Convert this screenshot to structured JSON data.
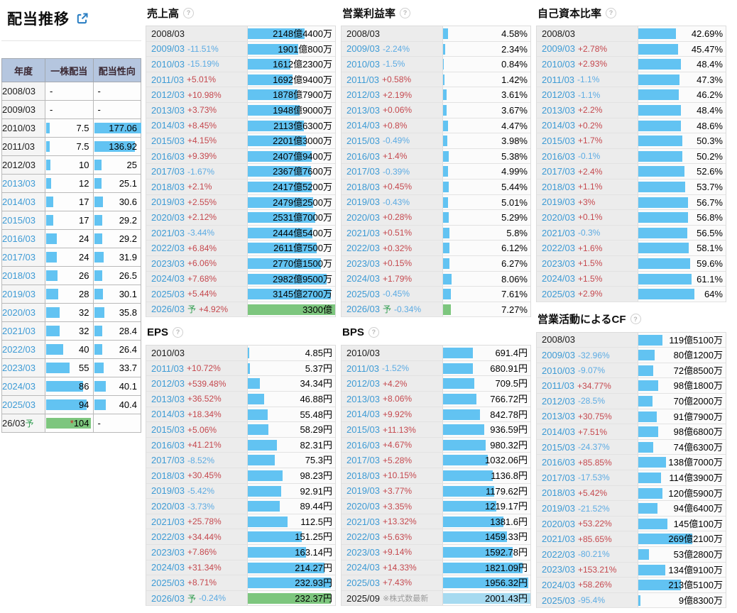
{
  "dividend_panel": {
    "title": "配当推移",
    "headers": [
      "年度",
      "一株配当",
      "配当性向"
    ],
    "rows": [
      {
        "year": "2008/03",
        "link": false,
        "dps": "-",
        "dps_bar": 0,
        "payout": "-",
        "payout_bar": 0
      },
      {
        "year": "2009/03",
        "link": false,
        "dps": "-",
        "dps_bar": 0,
        "payout": "-",
        "payout_bar": 0
      },
      {
        "year": "2010/03",
        "link": false,
        "dps": "7.5",
        "dps_bar": 7,
        "payout": "177.06",
        "payout_bar": 100
      },
      {
        "year": "2011/03",
        "link": false,
        "dps": "7.5",
        "dps_bar": 7,
        "payout": "136.92",
        "payout_bar": 86
      },
      {
        "year": "2012/03",
        "link": false,
        "dps": "10",
        "dps_bar": 9,
        "payout": "25",
        "payout_bar": 16
      },
      {
        "year": "2013/03",
        "link": true,
        "dps": "12",
        "dps_bar": 11,
        "payout": "25.1",
        "payout_bar": 16
      },
      {
        "year": "2014/03",
        "link": true,
        "dps": "17",
        "dps_bar": 15,
        "payout": "30.6",
        "payout_bar": 19
      },
      {
        "year": "2015/03",
        "link": true,
        "dps": "17",
        "dps_bar": 15,
        "payout": "29.2",
        "payout_bar": 18
      },
      {
        "year": "2016/03",
        "link": true,
        "dps": "24",
        "dps_bar": 22,
        "payout": "29.2",
        "payout_bar": 18
      },
      {
        "year": "2017/03",
        "link": true,
        "dps": "24",
        "dps_bar": 22,
        "payout": "31.9",
        "payout_bar": 20
      },
      {
        "year": "2018/03",
        "link": true,
        "dps": "26",
        "dps_bar": 24,
        "payout": "26.5",
        "payout_bar": 17
      },
      {
        "year": "2019/03",
        "link": true,
        "dps": "28",
        "dps_bar": 25,
        "payout": "30.1",
        "payout_bar": 19
      },
      {
        "year": "2020/03",
        "link": true,
        "dps": "32",
        "dps_bar": 29,
        "payout": "35.8",
        "payout_bar": 22
      },
      {
        "year": "2021/03",
        "link": true,
        "dps": "32",
        "dps_bar": 29,
        "payout": "28.4",
        "payout_bar": 18
      },
      {
        "year": "2022/03",
        "link": true,
        "dps": "40",
        "dps_bar": 36,
        "payout": "26.4",
        "payout_bar": 17
      },
      {
        "year": "2023/03",
        "link": true,
        "dps": "55",
        "dps_bar": 50,
        "payout": "33.7",
        "payout_bar": 21
      },
      {
        "year": "2024/03",
        "link": true,
        "dps": "86",
        "dps_bar": 78,
        "payout": "40.1",
        "payout_bar": 25
      },
      {
        "year": "2025/03",
        "link": true,
        "dps": "94",
        "dps_bar": 85,
        "payout": "40.4",
        "payout_bar": 25
      },
      {
        "year": "26/03",
        "suffix": "予",
        "link": false,
        "dps": "104",
        "star": "*",
        "dps_bar": 95,
        "dps_color": "green",
        "payout": "-",
        "payout_bar": 0
      }
    ]
  },
  "sections": [
    {
      "title": "売上高",
      "help": false,
      "rows": [
        {
          "year": "2008/03",
          "link": false,
          "change": "",
          "value": "2148億4400万",
          "bar": 65
        },
        {
          "year": "2009/03",
          "change": "-11.51%",
          "value": "1901億800万",
          "bar": 58
        },
        {
          "year": "2010/03",
          "change": "-15.19%",
          "value": "1612億2300万",
          "bar": 49
        },
        {
          "year": "2011/03",
          "change": "+5.01%",
          "value": "1692億9400万",
          "bar": 51
        },
        {
          "year": "2012/03",
          "change": "+10.98%",
          "value": "1878億7900万",
          "bar": 57
        },
        {
          "year": "2013/03",
          "change": "+3.73%",
          "value": "1948億9000万",
          "bar": 59
        },
        {
          "year": "2014/03",
          "change": "+8.45%",
          "value": "2113億6300万",
          "bar": 64
        },
        {
          "year": "2015/03",
          "change": "+4.15%",
          "value": "2201億3000万",
          "bar": 67
        },
        {
          "year": "2016/03",
          "change": "+9.39%",
          "value": "2407億9400万",
          "bar": 73
        },
        {
          "year": "2017/03",
          "change": "-1.67%",
          "value": "2367億7600万",
          "bar": 72
        },
        {
          "year": "2018/03",
          "change": "+2.1%",
          "value": "2417億5200万",
          "bar": 73
        },
        {
          "year": "2019/03",
          "change": "+2.55%",
          "value": "2479億2500万",
          "bar": 75
        },
        {
          "year": "2020/03",
          "change": "+2.12%",
          "value": "2531億7000万",
          "bar": 77
        },
        {
          "year": "2021/03",
          "change": "-3.44%",
          "value": "2444億5400万",
          "bar": 74
        },
        {
          "year": "2022/03",
          "change": "+6.84%",
          "value": "2611億7500万",
          "bar": 79
        },
        {
          "year": "2023/03",
          "change": "+6.06%",
          "value": "2770億1500万",
          "bar": 84
        },
        {
          "year": "2024/03",
          "change": "+7.68%",
          "value": "2982億9500万",
          "bar": 90
        },
        {
          "year": "2025/03",
          "change": "+5.44%",
          "value": "3145億2700万",
          "bar": 95
        },
        {
          "year": "2026/03",
          "suffix": "予",
          "change": "+4.92%",
          "value": "3300億",
          "bar": 100,
          "color": "green"
        }
      ]
    },
    {
      "title": "営業利益率",
      "help": false,
      "rows": [
        {
          "year": "2008/03",
          "link": false,
          "change": "",
          "value": "4.58%",
          "bar": 5.5
        },
        {
          "year": "2009/03",
          "change": "-2.24%",
          "value": "2.34%",
          "bar": 2.8
        },
        {
          "year": "2010/03",
          "change": "-1.5%",
          "value": "0.84%",
          "bar": 1.2
        },
        {
          "year": "2011/03",
          "change": "+0.58%",
          "value": "1.42%",
          "bar": 1.8
        },
        {
          "year": "2012/03",
          "change": "+2.19%",
          "value": "3.61%",
          "bar": 4.3
        },
        {
          "year": "2013/03",
          "change": "+0.06%",
          "value": "3.67%",
          "bar": 4.4
        },
        {
          "year": "2014/03",
          "change": "+0.8%",
          "value": "4.47%",
          "bar": 5.4
        },
        {
          "year": "2015/03",
          "change": "-0.49%",
          "value": "3.98%",
          "bar": 4.8
        },
        {
          "year": "2016/03",
          "change": "+1.4%",
          "value": "5.38%",
          "bar": 6.5
        },
        {
          "year": "2017/03",
          "change": "-0.39%",
          "value": "4.99%",
          "bar": 6
        },
        {
          "year": "2018/03",
          "change": "+0.45%",
          "value": "5.44%",
          "bar": 6.5
        },
        {
          "year": "2019/03",
          "change": "-0.43%",
          "value": "5.01%",
          "bar": 6
        },
        {
          "year": "2020/03",
          "change": "+0.28%",
          "value": "5.29%",
          "bar": 6.3
        },
        {
          "year": "2021/03",
          "change": "+0.51%",
          "value": "5.8%",
          "bar": 7
        },
        {
          "year": "2022/03",
          "change": "+0.32%",
          "value": "6.12%",
          "bar": 7.3
        },
        {
          "year": "2023/03",
          "change": "+0.15%",
          "value": "6.27%",
          "bar": 7.5
        },
        {
          "year": "2024/03",
          "change": "+1.79%",
          "value": "8.06%",
          "bar": 9.7
        },
        {
          "year": "2025/03",
          "change": "-0.45%",
          "value": "7.61%",
          "bar": 9.1
        },
        {
          "year": "2026/03",
          "suffix": "予",
          "change": "-0.34%",
          "value": "7.27%",
          "bar": 8.7,
          "color": "green"
        }
      ]
    },
    {
      "title": "自己資本比率",
      "help": true,
      "rows": [
        {
          "year": "2008/03",
          "link": false,
          "change": "",
          "value": "42.69%",
          "bar": 42.7
        },
        {
          "year": "2009/03",
          "change": "+2.78%",
          "value": "45.47%",
          "bar": 45.5
        },
        {
          "year": "2010/03",
          "change": "+2.93%",
          "value": "48.4%",
          "bar": 48.4
        },
        {
          "year": "2011/03",
          "change": "-1.1%",
          "value": "47.3%",
          "bar": 47.3
        },
        {
          "year": "2012/03",
          "change": "-1.1%",
          "value": "46.2%",
          "bar": 46.2
        },
        {
          "year": "2013/03",
          "change": "+2.2%",
          "value": "48.4%",
          "bar": 48.4
        },
        {
          "year": "2014/03",
          "change": "+0.2%",
          "value": "48.6%",
          "bar": 48.6
        },
        {
          "year": "2015/03",
          "change": "+1.7%",
          "value": "50.3%",
          "bar": 50.3
        },
        {
          "year": "2016/03",
          "change": "-0.1%",
          "value": "50.2%",
          "bar": 50.2
        },
        {
          "year": "2017/03",
          "change": "+2.4%",
          "value": "52.6%",
          "bar": 52.6
        },
        {
          "year": "2018/03",
          "change": "+1.1%",
          "value": "53.7%",
          "bar": 53.7
        },
        {
          "year": "2019/03",
          "change": "+3%",
          "value": "56.7%",
          "bar": 56.7
        },
        {
          "year": "2020/03",
          "change": "+0.1%",
          "value": "56.8%",
          "bar": 56.8
        },
        {
          "year": "2021/03",
          "change": "-0.3%",
          "value": "56.5%",
          "bar": 56.5
        },
        {
          "year": "2022/03",
          "change": "+1.6%",
          "value": "58.1%",
          "bar": 58.1
        },
        {
          "year": "2023/03",
          "change": "+1.5%",
          "value": "59.6%",
          "bar": 59.6
        },
        {
          "year": "2024/03",
          "change": "+1.5%",
          "value": "61.1%",
          "bar": 61.1
        },
        {
          "year": "2025/03",
          "change": "+2.9%",
          "value": "64%",
          "bar": 64
        }
      ]
    },
    {
      "title": "EPS",
      "help": true,
      "rows": [
        {
          "year": "2010/03",
          "link": false,
          "change": "",
          "value": "4.85円",
          "bar": 2
        },
        {
          "year": "2011/03",
          "change": "+10.72%",
          "value": "5.37円",
          "bar": 2.2
        },
        {
          "year": "2012/03",
          "change": "+539.48%",
          "value": "34.34円",
          "bar": 14
        },
        {
          "year": "2013/03",
          "change": "+36.52%",
          "value": "46.88円",
          "bar": 19.1
        },
        {
          "year": "2014/03",
          "change": "+18.34%",
          "value": "55.48円",
          "bar": 22.6
        },
        {
          "year": "2015/03",
          "change": "+5.06%",
          "value": "58.29円",
          "bar": 23.8
        },
        {
          "year": "2016/03",
          "change": "+41.21%",
          "value": "82.31円",
          "bar": 33.6
        },
        {
          "year": "2017/03",
          "change": "-8.52%",
          "value": "75.3円",
          "bar": 30.7
        },
        {
          "year": "2018/03",
          "change": "+30.45%",
          "value": "98.23円",
          "bar": 40.1
        },
        {
          "year": "2019/03",
          "change": "-5.42%",
          "value": "92.91円",
          "bar": 37.9
        },
        {
          "year": "2020/03",
          "change": "-3.73%",
          "value": "89.44円",
          "bar": 36.5
        },
        {
          "year": "2021/03",
          "change": "+25.78%",
          "value": "112.5円",
          "bar": 45.9
        },
        {
          "year": "2022/03",
          "change": "+34.44%",
          "value": "151.25円",
          "bar": 61.7
        },
        {
          "year": "2023/03",
          "change": "+7.86%",
          "value": "163.14円",
          "bar": 66.6
        },
        {
          "year": "2024/03",
          "change": "+31.34%",
          "value": "214.27円",
          "bar": 87.5
        },
        {
          "year": "2025/03",
          "change": "+8.71%",
          "value": "232.93円",
          "bar": 95.1
        },
        {
          "year": "2026/03",
          "suffix": "予",
          "change": "-0.24%",
          "value": "232.37円",
          "bar": 94.8,
          "color": "green"
        }
      ]
    },
    {
      "title": "BPS",
      "help": true,
      "rows": [
        {
          "year": "2010/03",
          "link": false,
          "change": "",
          "value": "691.4円",
          "bar": 34.5
        },
        {
          "year": "2011/03",
          "change": "-1.52%",
          "value": "680.91円",
          "bar": 34
        },
        {
          "year": "2012/03",
          "change": "+4.2%",
          "value": "709.5円",
          "bar": 35.4
        },
        {
          "year": "2013/03",
          "change": "+8.06%",
          "value": "766.72円",
          "bar": 38.3
        },
        {
          "year": "2014/03",
          "change": "+9.92%",
          "value": "842.78円",
          "bar": 42.1
        },
        {
          "year": "2015/03",
          "change": "+11.13%",
          "value": "936.59円",
          "bar": 46.8
        },
        {
          "year": "2016/03",
          "change": "+4.67%",
          "value": "980.32円",
          "bar": 49
        },
        {
          "year": "2017/03",
          "change": "+5.28%",
          "value": "1032.06円",
          "bar": 51.6
        },
        {
          "year": "2018/03",
          "change": "+10.15%",
          "value": "1136.8円",
          "bar": 56.8
        },
        {
          "year": "2019/03",
          "change": "+3.77%",
          "value": "1179.62円",
          "bar": 58.9
        },
        {
          "year": "2020/03",
          "change": "+3.35%",
          "value": "1219.17円",
          "bar": 60.9
        },
        {
          "year": "2021/03",
          "change": "+13.32%",
          "value": "1381.6円",
          "bar": 69
        },
        {
          "year": "2022/03",
          "change": "+5.63%",
          "value": "1459.33円",
          "bar": 72.9
        },
        {
          "year": "2023/03",
          "change": "+9.14%",
          "value": "1592.78円",
          "bar": 79.6
        },
        {
          "year": "2024/03",
          "change": "+14.33%",
          "value": "1821.09円",
          "bar": 91
        },
        {
          "year": "2025/03",
          "change": "+7.43%",
          "value": "1956.32円",
          "bar": 97.7
        },
        {
          "year": "2025/09",
          "link": false,
          "note": "※株式数最新",
          "change": "",
          "value": "2001.43円",
          "bar": 100,
          "color": "light"
        }
      ]
    },
    {
      "title": "営業活動によるCF",
      "help": true,
      "rows": [
        {
          "year": "2008/03",
          "link": false,
          "change": "",
          "value": "119億5100万",
          "bar": 27.5
        },
        {
          "year": "2009/03",
          "change": "-32.96%",
          "value": "80億1200万",
          "bar": 18.4
        },
        {
          "year": "2010/03",
          "change": "-9.07%",
          "value": "72億8500万",
          "bar": 16.7
        },
        {
          "year": "2011/03",
          "change": "+34.77%",
          "value": "98億1800万",
          "bar": 22.6
        },
        {
          "year": "2012/03",
          "change": "-28.5%",
          "value": "70億2000万",
          "bar": 16.1
        },
        {
          "year": "2013/03",
          "change": "+30.75%",
          "value": "91億7900万",
          "bar": 21.1
        },
        {
          "year": "2014/03",
          "change": "+7.51%",
          "value": "98億6800万",
          "bar": 22.7
        },
        {
          "year": "2015/03",
          "change": "-24.37%",
          "value": "74億6300万",
          "bar": 17.2
        },
        {
          "year": "2016/03",
          "change": "+85.85%",
          "value": "138億7000万",
          "bar": 31.9
        },
        {
          "year": "2017/03",
          "change": "-17.53%",
          "value": "114億3900万",
          "bar": 26.3
        },
        {
          "year": "2018/03",
          "change": "+5.42%",
          "value": "120億5900万",
          "bar": 27.7
        },
        {
          "year": "2019/03",
          "change": "-21.52%",
          "value": "94億6400万",
          "bar": 21.8
        },
        {
          "year": "2020/03",
          "change": "+53.22%",
          "value": "145億100万",
          "bar": 33.3
        },
        {
          "year": "2021/03",
          "change": "+85.65%",
          "value": "269億2100万",
          "bar": 61.9
        },
        {
          "year": "2022/03",
          "change": "-80.21%",
          "value": "53億2800万",
          "bar": 12.2
        },
        {
          "year": "2023/03",
          "change": "+153.21%",
          "value": "134億9100万",
          "bar": 31
        },
        {
          "year": "2024/03",
          "change": "+58.26%",
          "value": "213億5100万",
          "bar": 49.1
        },
        {
          "year": "2025/03",
          "change": "-95.4%",
          "value": "9億8300万",
          "bar": 2.3
        }
      ]
    }
  ]
}
